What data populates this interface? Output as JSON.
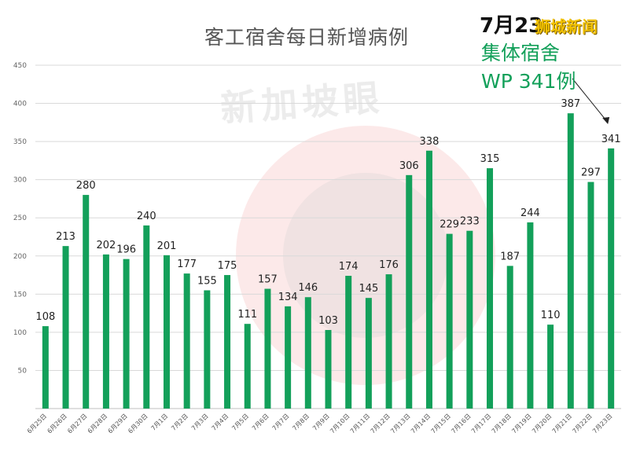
{
  "chart_data": {
    "type": "bar",
    "title": "客工宿舍每日新增病例",
    "categories": [
      "6月25日",
      "6月26日",
      "6月27日",
      "6月28日",
      "6月29日",
      "6月30日",
      "7月1日",
      "7月2日",
      "7月3日",
      "7月4日",
      "7月5日",
      "7月6日",
      "7月7日",
      "7月8日",
      "7月9日",
      "7月10日",
      "7月11日",
      "7月12日",
      "7月13日",
      "7月14日",
      "7月15日",
      "7月16日",
      "7月17日",
      "7月18日",
      "7月19日",
      "7月20日",
      "7月21日",
      "7月22日",
      "7月23日"
    ],
    "values": [
      108,
      213,
      280,
      202,
      196,
      240,
      201,
      177,
      155,
      175,
      111,
      157,
      134,
      146,
      103,
      174,
      145,
      176,
      306,
      338,
      229,
      233,
      315,
      187,
      244,
      110,
      387,
      297,
      341
    ],
    "ylim": [
      0,
      450
    ],
    "yticks": [
      50,
      100,
      150,
      200,
      250,
      300,
      350,
      400,
      450
    ],
    "grid": true,
    "bar_color": "#13a05a",
    "annotation": {
      "date": "7月23",
      "brand": "狮城新闻",
      "line1": "集体宿舍",
      "line2": "WP 341例"
    },
    "watermark": "新加坡眼"
  }
}
